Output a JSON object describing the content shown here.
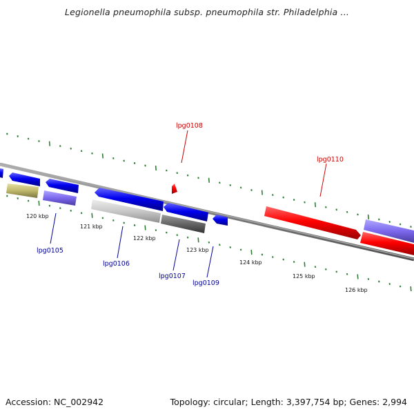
{
  "title": "Legionella pneumophila subsp. pneumophila str. Philadelphia ...",
  "footer": {
    "accession": "Accession: NC_002942",
    "summary": "Topology: circular; Length: 3,397,754 bp; Genes: 2,994"
  },
  "scale_labels": [
    "120 kbp",
    "121 kbp",
    "122 kbp",
    "123 kbp",
    "124 kbp",
    "125 kbp",
    "126 kbp"
  ],
  "genes": [
    {
      "label": "lpg0108",
      "strand": "forward",
      "color": "#cc0000"
    },
    {
      "label": "lpg0110",
      "strand": "forward",
      "color": "#cc0000"
    },
    {
      "label": "lpg0105",
      "strand": "reverse",
      "color": "#000099"
    },
    {
      "label": "lpg0106",
      "strand": "reverse",
      "color": "#000099"
    },
    {
      "label": "lpg0107",
      "strand": "reverse",
      "color": "#000099"
    },
    {
      "label": "lpg0109",
      "strand": "reverse",
      "color": "#000099"
    }
  ],
  "colors": {
    "backbone": "#808080",
    "tick": "#2e7d32",
    "forward_feature": "#ff0000",
    "reverse_feature": "#0000ee",
    "feature_purple": "#7b68ee",
    "feature_olive": "#bdb76b",
    "feature_light_gray": "#c0c0c0",
    "feature_dark_gray": "#606060"
  }
}
